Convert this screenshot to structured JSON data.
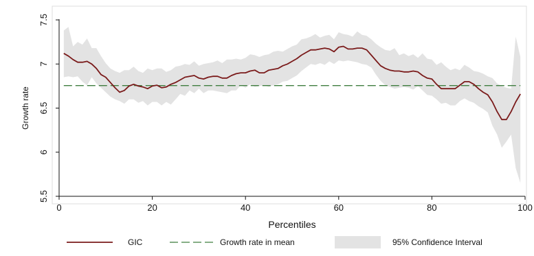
{
  "chart_data": {
    "type": "line",
    "title": "",
    "xlabel": "Percentiles",
    "ylabel": "Growth rate",
    "xlim": [
      0,
      100
    ],
    "ylim": [
      5.5,
      7.5
    ],
    "grid": false,
    "legend_position": "bottom",
    "x_ticks": [
      0,
      20,
      40,
      60,
      80,
      100
    ],
    "y_ticks": [
      5.5,
      6,
      6.5,
      7,
      7.5
    ],
    "x_tick_labels": [
      "0",
      "20",
      "40",
      "60",
      "80",
      "100"
    ],
    "y_tick_labels": [
      "5.5",
      "6",
      "6.5",
      "7",
      "7.5"
    ],
    "series": [
      {
        "name": "GIC",
        "color": "#7a1a1a",
        "style": "solid",
        "points": [
          [
            1,
            7.12
          ],
          [
            2,
            7.09
          ],
          [
            3,
            7.05
          ],
          [
            4,
            7.02
          ],
          [
            5,
            7.02
          ],
          [
            6,
            7.03
          ],
          [
            7,
            7.0
          ],
          [
            8,
            6.95
          ],
          [
            9,
            6.88
          ],
          [
            10,
            6.85
          ],
          [
            11,
            6.79
          ],
          [
            12,
            6.73
          ],
          [
            13,
            6.68
          ],
          [
            14,
            6.7
          ],
          [
            15,
            6.75
          ],
          [
            16,
            6.77
          ],
          [
            17,
            6.75
          ],
          [
            18,
            6.74
          ],
          [
            19,
            6.72
          ],
          [
            20,
            6.75
          ],
          [
            21,
            6.76
          ],
          [
            22,
            6.73
          ],
          [
            23,
            6.74
          ],
          [
            24,
            6.77
          ],
          [
            25,
            6.79
          ],
          [
            26,
            6.82
          ],
          [
            27,
            6.85
          ],
          [
            28,
            6.86
          ],
          [
            29,
            6.87
          ],
          [
            30,
            6.84
          ],
          [
            31,
            6.83
          ],
          [
            32,
            6.85
          ],
          [
            33,
            6.86
          ],
          [
            34,
            6.86
          ],
          [
            35,
            6.84
          ],
          [
            36,
            6.84
          ],
          [
            37,
            6.87
          ],
          [
            38,
            6.89
          ],
          [
            39,
            6.9
          ],
          [
            40,
            6.9
          ],
          [
            41,
            6.92
          ],
          [
            42,
            6.93
          ],
          [
            43,
            6.9
          ],
          [
            44,
            6.9
          ],
          [
            45,
            6.93
          ],
          [
            46,
            6.94
          ],
          [
            47,
            6.95
          ],
          [
            48,
            6.98
          ],
          [
            49,
            7.0
          ],
          [
            50,
            7.03
          ],
          [
            51,
            7.06
          ],
          [
            52,
            7.1
          ],
          [
            53,
            7.13
          ],
          [
            54,
            7.16
          ],
          [
            55,
            7.16
          ],
          [
            56,
            7.17
          ],
          [
            57,
            7.18
          ],
          [
            58,
            7.17
          ],
          [
            59,
            7.14
          ],
          [
            60,
            7.19
          ],
          [
            61,
            7.2
          ],
          [
            62,
            7.17
          ],
          [
            63,
            7.17
          ],
          [
            64,
            7.18
          ],
          [
            65,
            7.18
          ],
          [
            66,
            7.16
          ],
          [
            67,
            7.1
          ],
          [
            68,
            7.04
          ],
          [
            69,
            6.98
          ],
          [
            70,
            6.95
          ],
          [
            71,
            6.93
          ],
          [
            72,
            6.92
          ],
          [
            73,
            6.92
          ],
          [
            74,
            6.91
          ],
          [
            75,
            6.91
          ],
          [
            76,
            6.92
          ],
          [
            77,
            6.91
          ],
          [
            78,
            6.87
          ],
          [
            79,
            6.84
          ],
          [
            80,
            6.83
          ],
          [
            81,
            6.77
          ],
          [
            82,
            6.72
          ],
          [
            83,
            6.72
          ],
          [
            84,
            6.72
          ],
          [
            85,
            6.72
          ],
          [
            86,
            6.76
          ],
          [
            87,
            6.8
          ],
          [
            88,
            6.8
          ],
          [
            89,
            6.77
          ],
          [
            90,
            6.72
          ],
          [
            91,
            6.68
          ],
          [
            92,
            6.65
          ],
          [
            93,
            6.57
          ],
          [
            94,
            6.46
          ],
          [
            95,
            6.37
          ],
          [
            96,
            6.37
          ],
          [
            97,
            6.46
          ],
          [
            98,
            6.57
          ],
          [
            99,
            6.66
          ]
        ]
      },
      {
        "name": "Growth rate in mean",
        "color": "#3f7d3f",
        "style": "dashed",
        "points": [
          [
            1,
            6.755
          ],
          [
            99,
            6.755
          ]
        ]
      }
    ],
    "confidence_band": {
      "name": "95% Confidence Interval",
      "color": "#e3e3e3",
      "x": [
        1,
        2,
        3,
        4,
        5,
        6,
        7,
        8,
        9,
        10,
        11,
        12,
        13,
        14,
        15,
        16,
        17,
        18,
        19,
        20,
        21,
        22,
        23,
        24,
        25,
        26,
        27,
        28,
        29,
        30,
        31,
        32,
        33,
        34,
        35,
        36,
        37,
        38,
        39,
        40,
        41,
        42,
        43,
        44,
        45,
        46,
        47,
        48,
        49,
        50,
        51,
        52,
        53,
        54,
        55,
        56,
        57,
        58,
        59,
        60,
        61,
        62,
        63,
        64,
        65,
        66,
        67,
        68,
        69,
        70,
        71,
        72,
        73,
        74,
        75,
        76,
        77,
        78,
        79,
        80,
        81,
        82,
        83,
        84,
        85,
        86,
        87,
        88,
        89,
        90,
        91,
        92,
        93,
        94,
        95,
        96,
        97,
        98,
        99
      ],
      "upper": [
        7.38,
        7.42,
        7.2,
        7.25,
        7.22,
        7.29,
        7.18,
        7.18,
        7.09,
        7.01,
        6.95,
        6.92,
        6.9,
        6.93,
        6.93,
        6.97,
        6.92,
        6.9,
        6.95,
        6.93,
        6.95,
        6.95,
        6.91,
        6.93,
        6.97,
        6.98,
        7.0,
        6.99,
        7.03,
        6.98,
        7.0,
        7.01,
        7.02,
        7.04,
        7.01,
        7.05,
        7.05,
        7.06,
        7.05,
        7.07,
        7.11,
        7.1,
        7.08,
        7.1,
        7.11,
        7.14,
        7.15,
        7.14,
        7.17,
        7.2,
        7.22,
        7.28,
        7.29,
        7.31,
        7.34,
        7.3,
        7.32,
        7.33,
        7.28,
        7.36,
        7.34,
        7.33,
        7.31,
        7.37,
        7.33,
        7.32,
        7.28,
        7.23,
        7.19,
        7.16,
        7.15,
        7.18,
        7.1,
        7.12,
        7.09,
        7.11,
        7.07,
        7.12,
        7.06,
        7.05,
        6.99,
        7.02,
        6.97,
        6.93,
        6.95,
        6.93,
        6.99,
        6.96,
        6.92,
        6.91,
        6.89,
        6.86,
        6.84,
        6.78,
        6.75,
        6.73,
        6.72,
        7.31,
        7.08
      ],
      "lower": [
        6.85,
        6.86,
        6.85,
        6.86,
        6.8,
        6.76,
        6.85,
        6.78,
        6.73,
        6.68,
        6.63,
        6.6,
        6.58,
        6.55,
        6.6,
        6.6,
        6.56,
        6.58,
        6.53,
        6.57,
        6.57,
        6.53,
        6.57,
        6.54,
        6.6,
        6.66,
        6.64,
        6.7,
        6.67,
        6.72,
        6.67,
        6.7,
        6.7,
        6.69,
        6.68,
        6.67,
        6.7,
        6.7,
        6.76,
        6.73,
        6.77,
        6.74,
        6.75,
        6.76,
        6.74,
        6.76,
        6.77,
        6.8,
        6.81,
        6.84,
        6.87,
        6.92,
        6.96,
        7.0,
        6.99,
        7.01,
        6.99,
        7.03,
        7.0,
        7.04,
        7.03,
        7.04,
        7.03,
        7.02,
        7.0,
        6.99,
        6.96,
        6.88,
        6.81,
        6.76,
        6.74,
        6.72,
        6.73,
        6.74,
        6.73,
        6.71,
        6.75,
        6.7,
        6.65,
        6.64,
        6.6,
        6.55,
        6.56,
        6.53,
        6.53,
        6.58,
        6.61,
        6.58,
        6.56,
        6.52,
        6.49,
        6.45,
        6.3,
        6.2,
        6.05,
        6.12,
        6.2,
        5.82,
        5.65
      ]
    }
  }
}
